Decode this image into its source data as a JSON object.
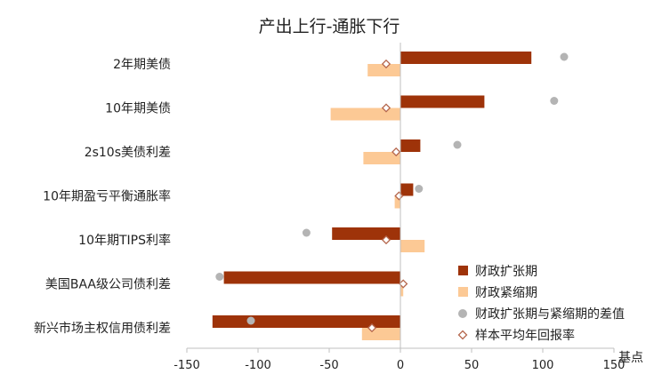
{
  "chart_data": {
    "type": "bar",
    "orientation": "horizontal",
    "title": "产出上行-通胀下行",
    "xlabel": "基点",
    "xlim": [
      -150,
      150
    ],
    "xticks": [
      -150,
      -100,
      -50,
      0,
      50,
      100,
      150
    ],
    "grid": false,
    "legend_position": "right",
    "categories": [
      "2年期美债",
      "10年期美债",
      "2s10s美债利差",
      "10年期盈亏平衡通胀率",
      "10年期TIPS利率",
      "美国BAA级公司债利差",
      "新兴市场主权信用债利差"
    ],
    "series": [
      {
        "name": "财政扩张期",
        "kind": "bar",
        "color": "#9e3309",
        "values": [
          92,
          59,
          14,
          9,
          -48,
          -124,
          -132
        ]
      },
      {
        "name": "财政紧缩期",
        "kind": "bar",
        "color": "#fcc995",
        "values": [
          -23,
          -49,
          -26,
          -4,
          17,
          2,
          -27
        ]
      },
      {
        "name": "财政扩张期与紧缩期的差值",
        "kind": "marker",
        "marker": "circle",
        "color": "#b4b4b4",
        "values": [
          115,
          108,
          40,
          13,
          -66,
          -127,
          -105
        ]
      },
      {
        "name": "样本平均年回报率",
        "kind": "marker",
        "marker": "diamond",
        "color": "#b5674d",
        "values": [
          -10,
          -10,
          -3,
          -1,
          -10,
          2,
          -20
        ]
      }
    ]
  }
}
